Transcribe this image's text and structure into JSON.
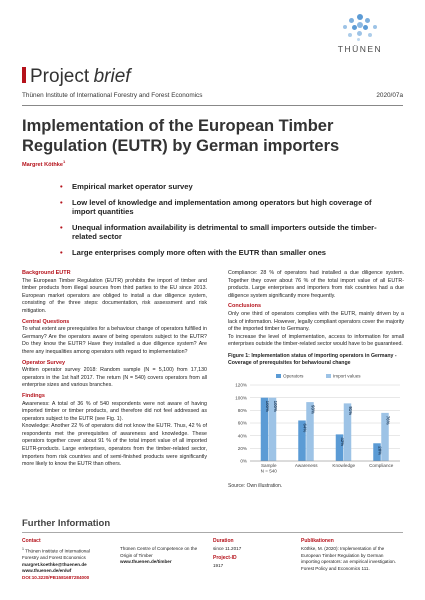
{
  "logo": {
    "text": "THÜNEN"
  },
  "header": {
    "brand_first": "Project",
    "brand_second": "brief",
    "institute": "Thünen Institute of International Forestry and Forest Economics",
    "issue": "2020/07a"
  },
  "title": "Implementation of the European Timber Regulation (EUTR) by German importers",
  "authors": "Margret Köthke",
  "authors_mark": "1",
  "bullets": [
    "Empirical market operator survey",
    "Low level of knowledge and implementation among operators but high coverage of import quantities",
    "Unequal information availability is detrimental to small importers outside the timber-related sector",
    "Large enterprises comply more often with the EUTR than smaller ones"
  ],
  "left_sections": [
    {
      "heading": "Background EUTR",
      "text": "The European Timber Regulation (EUTR) prohibits the import of timber and timber products from illegal sources from third parties to the EU since 2013. European market operators are obliged to install a due diligence system, consisting of the three steps: documentation, risk assessment and risk mitigation."
    },
    {
      "heading": "Central Questions",
      "text": "To what extent are prerequisites for a behaviour change of operators fulfilled in Germany? Are the operators aware of being operators subject to the EUTR? Do they know the EUTR? Have they installed a due diligence system? Are there any inequalities among operators with regard to implementation?"
    },
    {
      "heading": "Operator Survey",
      "text": "Written operator survey 2018: Random sample (N = 5,100) from 17,130 operators in the 1st half 2017. The return (N = 540) covers operators from all enterprise sizes and various branches."
    },
    {
      "heading": "Findings",
      "text": "Awareness: A total of 36 % of 540 respondents were not aware of having imported timber or timber products, and therefore did not feel addressed as operators subject to the EUTR (see Fig. 1).\nKnowledge: Another 22 % of operators did not know the EUTR. Thus, 42 % of respondents met the prerequisites of awareness and knowledge. These operators together cover about 91 % of the total import value of all imported EUTR-products. Large enterprises, operators from the timber-related sector, importers from risk countries and of semi-finished products were significantly more likely to know the EUTR than others."
    }
  ],
  "right_sections": [
    {
      "heading": "",
      "text": "Compliance: 28 % of operators had installed a due diligence system. Together they cover about 76 % of the total import value of all EUTR-products. Large enterprises and importers from risk countries had a due diligence system significantly more frequently."
    },
    {
      "heading": "Conclusions",
      "text": "Only one third of operators complies with the EUTR, mainly driven by a lack of information. However, legally compliant operators cover the majority of the imported timber to Germany.\nTo increase the level of implementation, access to information for small enterprises outside the timber-related sector would have to be guaranteed."
    }
  ],
  "figure": {
    "caption": "Figure 1: Implementation status of importing operators in Germany - Coverage of prerequisites for behavioural change",
    "source": "Source: Own illustration."
  },
  "chart_data": {
    "type": "bar",
    "categories": [
      "Sample N = 540",
      "Awareness",
      "Knowledge",
      "Compliance"
    ],
    "series": [
      {
        "name": "Operators",
        "values": [
          100,
          64,
          42,
          28
        ],
        "labels": [
          "100%",
          "64%",
          "42%",
          "28%"
        ]
      },
      {
        "name": "Import values",
        "values": [
          100,
          93,
          91,
          76
        ],
        "labels": [
          "100%",
          "93%",
          "91%",
          "76%"
        ]
      }
    ],
    "yticks": [
      "0%",
      "20%",
      "40%",
      "60%",
      "80%",
      "100%",
      "120%"
    ],
    "ylim": [
      0,
      120
    ],
    "legend": "top",
    "colors": {
      "Operators": "#5b9bd5",
      "Import values": "#9dc3e6",
      "grid": "#d0d0d0"
    }
  },
  "footer": {
    "title": "Further Information",
    "contact_head": "Contact",
    "contact_mark": "1",
    "contact_lines": [
      "Thünen Institute of International",
      "Forestry and Forest Economics",
      "margret.koethke@thuenen.de",
      "www.thuenen.de/en/wf"
    ],
    "doi": "DOI:10.3220/PB1581687284000",
    "contact2_lines": [
      "Thünen Centre of Competence on the",
      "Origin of Timber",
      "www.thuenen.de/timber"
    ],
    "duration_head": "Duration",
    "duration": "since 11.2017",
    "project_id_head": "Project-ID",
    "project_id": "1917",
    "pub_head": "Publikationen",
    "pub_text": "Köthke, M. (2020): Implementation of the European Timber Regulation by German importing operators: an empirical investigation. Forest Policy and Economics 111."
  }
}
